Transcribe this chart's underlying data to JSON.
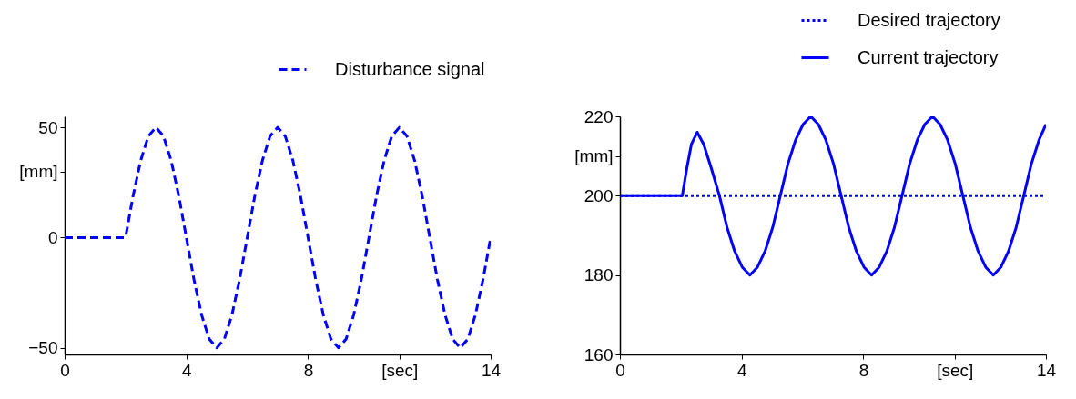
{
  "chart_data": [
    {
      "type": "line",
      "xlim": [
        0,
        14
      ],
      "xticks": [
        0,
        4,
        8,
        {
          "value": 11,
          "label": "[sec]"
        },
        14
      ],
      "ylim": [
        -53,
        55
      ],
      "yticks": [
        -50,
        0,
        {
          "value": 30,
          "label": "[mm]"
        },
        50
      ],
      "legend": "top",
      "series": [
        {
          "name": "Disturbance signal",
          "color": "#0000ff",
          "line_style": "dashed",
          "x": [
            0,
            2,
            2.25,
            2.5,
            2.75,
            3,
            3.25,
            3.5,
            3.75,
            4,
            4.25,
            4.5,
            4.75,
            5,
            5.25,
            5.5,
            5.75,
            6,
            6.25,
            6.5,
            6.75,
            7,
            7.25,
            7.5,
            7.75,
            8,
            8.25,
            8.5,
            8.75,
            9,
            9.25,
            9.5,
            9.75,
            10,
            10.25,
            10.5,
            10.75,
            11,
            11.25,
            11.5,
            11.75,
            12,
            12.25,
            12.5,
            12.75,
            13,
            13.25,
            13.5,
            13.75,
            14
          ],
          "values": [
            0,
            0,
            19,
            35,
            46,
            50,
            46,
            35,
            19,
            0,
            -19,
            -35,
            -46,
            -50,
            -46,
            -35,
            -19,
            0,
            19,
            35,
            46,
            50,
            46,
            35,
            19,
            0,
            -19,
            -35,
            -46,
            -50,
            -46,
            -35,
            -19,
            0,
            19,
            35,
            46,
            50,
            46,
            35,
            19,
            0,
            -19,
            -35,
            -46,
            -50,
            -46,
            -35,
            -19,
            0
          ]
        }
      ]
    },
    {
      "type": "line",
      "xlim": [
        0,
        14
      ],
      "xticks": [
        0,
        4,
        8,
        {
          "value": 11,
          "label": "[sec]"
        },
        14
      ],
      "ylim": [
        160,
        220
      ],
      "yticks": [
        160,
        180,
        200,
        {
          "value": 210,
          "label": "[mm]"
        },
        220
      ],
      "legend": "top right",
      "series": [
        {
          "name": "Desired trajectory",
          "color": "#0000ff",
          "line_style": "dotted",
          "x": [
            0,
            14
          ],
          "values": [
            200,
            200
          ]
        },
        {
          "name": "Current trajectory",
          "color": "#0000ff",
          "line_style": "solid",
          "x": [
            0,
            2.05,
            2.2,
            2.35,
            2.54,
            2.75,
            3,
            3.27,
            3.52,
            3.77,
            4.02,
            4.27,
            4.52,
            4.77,
            5.02,
            5.27,
            5.52,
            5.77,
            6.02,
            6.27,
            6.52,
            6.77,
            7.02,
            7.27,
            7.52,
            7.77,
            8.02,
            8.27,
            8.52,
            8.77,
            9.02,
            9.27,
            9.52,
            9.77,
            10.02,
            10.27,
            10.52,
            10.77,
            11.02,
            11.27,
            11.52,
            11.77,
            12.02,
            12.27,
            12.52,
            12.77,
            13.02,
            13.27,
            13.52,
            13.77,
            14
          ],
          "values": [
            200,
            200,
            207,
            213,
            216,
            213,
            207,
            200,
            192,
            186,
            182,
            180,
            182,
            186,
            192,
            200,
            208,
            214,
            218,
            220,
            218,
            214,
            208,
            200,
            192,
            186,
            182,
            180,
            182,
            186,
            192,
            200,
            208,
            214,
            218,
            220,
            218,
            214,
            208,
            200,
            192,
            186,
            182,
            180,
            182,
            186,
            192,
            200,
            208,
            214,
            218
          ]
        }
      ]
    }
  ]
}
